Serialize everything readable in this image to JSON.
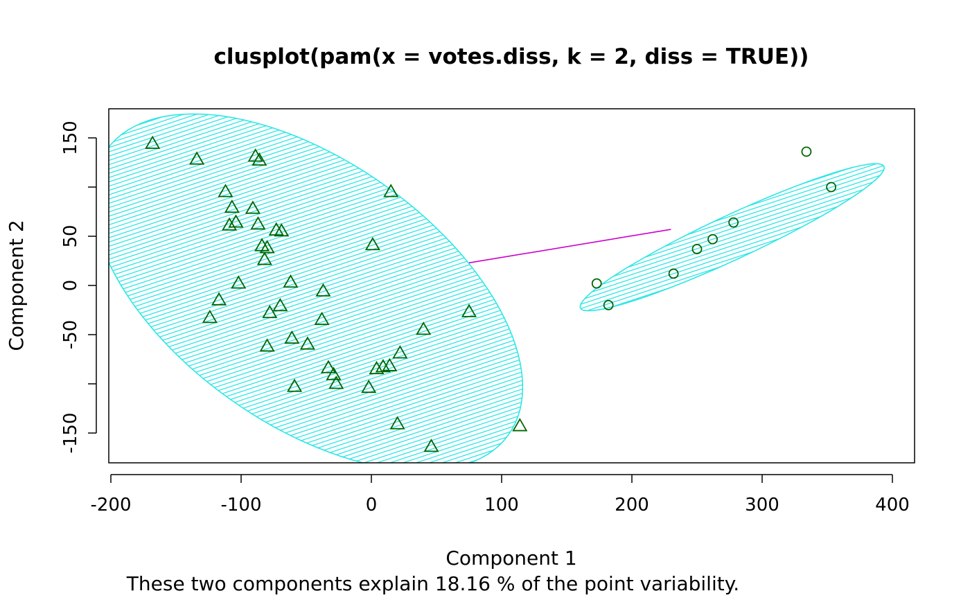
{
  "chart_data": {
    "type": "scatter",
    "title": "clusplot(pam(x = votes.diss, k = 2, diss = TRUE))",
    "xlabel": "Component 1",
    "ylabel": "Component 2",
    "subtitle": "These two components explain 18.16 % of the point variability.",
    "xlim": [
      -200,
      400
    ],
    "ylim": [
      -150,
      150
    ],
    "x_ticks": [
      -200,
      -100,
      0,
      100,
      200,
      300,
      400
    ],
    "y_ticks": [
      -150,
      -100,
      -50,
      0,
      50,
      100,
      150
    ],
    "y_tick_labels_shown": [
      -150,
      -50,
      0,
      50,
      150
    ],
    "grid": false,
    "colors": {
      "points": "#006400",
      "ellipse": "#2ee6e6",
      "link": "#cc00cc"
    },
    "series": [
      {
        "name": "cluster 1",
        "marker": "triangle",
        "points": [
          [
            -168,
            144
          ],
          [
            -134,
            128
          ],
          [
            -89,
            131
          ],
          [
            -86,
            127
          ],
          [
            -112,
            95
          ],
          [
            -107,
            79
          ],
          [
            -91,
            78
          ],
          [
            -104,
            64
          ],
          [
            -109,
            61
          ],
          [
            -87,
            62
          ],
          [
            -73,
            56
          ],
          [
            -69,
            55
          ],
          [
            -84,
            40
          ],
          [
            -80,
            38
          ],
          [
            -82,
            26
          ],
          [
            -102,
            2
          ],
          [
            -62,
            3
          ],
          [
            -37,
            -6
          ],
          [
            -117,
            -15
          ],
          [
            -124,
            -33
          ],
          [
            -70,
            -21
          ],
          [
            -78,
            -28
          ],
          [
            -38,
            -35
          ],
          [
            -80,
            -62
          ],
          [
            -61,
            -54
          ],
          [
            -49,
            -60
          ],
          [
            15,
            95
          ],
          [
            1,
            41
          ],
          [
            75,
            -27
          ],
          [
            40,
            -45
          ],
          [
            22,
            -69
          ],
          [
            -33,
            -84
          ],
          [
            -29,
            -91
          ],
          [
            -27,
            -100
          ],
          [
            -59,
            -103
          ],
          [
            4,
            -85
          ],
          [
            9,
            -83
          ],
          [
            14,
            -82
          ],
          [
            -2,
            -104
          ],
          [
            20,
            -141
          ],
          [
            46,
            -164
          ],
          [
            114,
            -143
          ]
        ]
      },
      {
        "name": "cluster 2",
        "marker": "circle",
        "points": [
          [
            334,
            136
          ],
          [
            353,
            100
          ],
          [
            278,
            64
          ],
          [
            262,
            47
          ],
          [
            250,
            37
          ],
          [
            232,
            12
          ],
          [
            173,
            2
          ],
          [
            182,
            -20
          ]
        ]
      }
    ],
    "ellipses": [
      {
        "cx": -49,
        "cy": -7,
        "a": 215,
        "b": 118,
        "angle_deg": -50
      },
      {
        "cx": 277,
        "cy": 49,
        "a": 137,
        "b": 21,
        "angle_deg": 32
      }
    ],
    "link": {
      "from": [
        75,
        23
      ],
      "to": [
        230,
        57
      ]
    }
  }
}
